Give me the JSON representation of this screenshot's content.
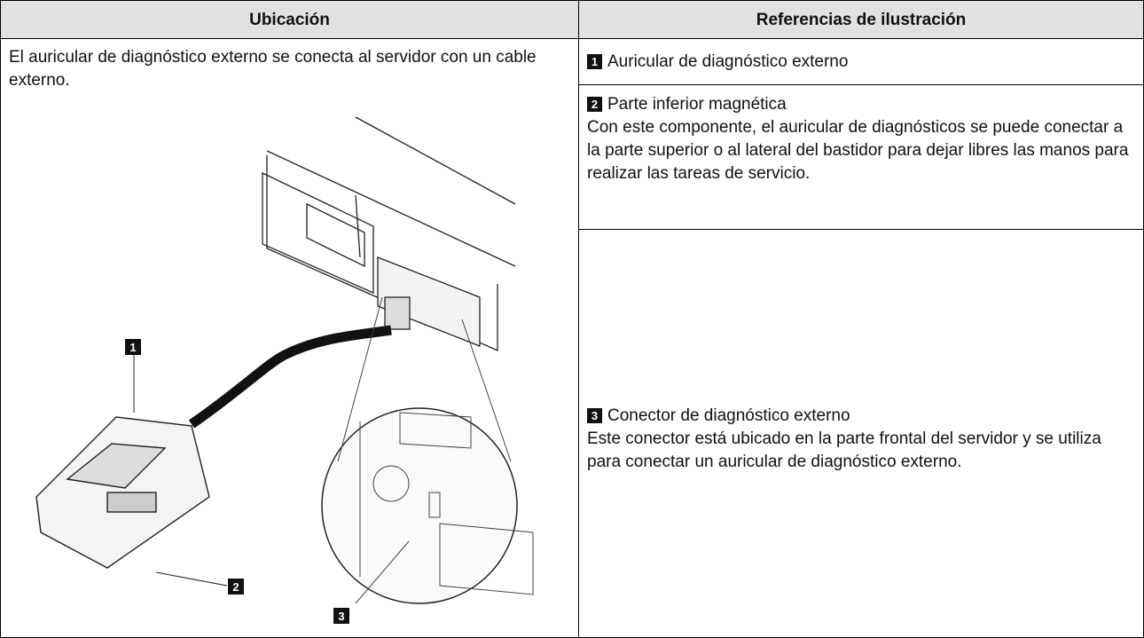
{
  "table": {
    "headers": [
      "Ubicación",
      "Referencias de ilustración"
    ],
    "location": "El auricular de diagnóstico externo se conecta al servidor con un cable externo.",
    "illustration": {
      "callouts": [
        "1",
        "2",
        "3"
      ]
    },
    "references": [
      {
        "number": "1",
        "title": "Auricular de diagnóstico externo"
      },
      {
        "number": "2",
        "title": "Parte inferior magnética",
        "description": "Con este componente, el auricular de diagnósticos se puede conectar a la parte superior o al lateral del bastidor para dejar libres las manos para realizar las tareas de servicio."
      },
      {
        "number": "3",
        "title": "Conector de diagnóstico externo",
        "description": "Este conector está ubicado en la parte frontal del servidor y se utiliza para conectar un auricular de diagnóstico externo."
      }
    ]
  }
}
